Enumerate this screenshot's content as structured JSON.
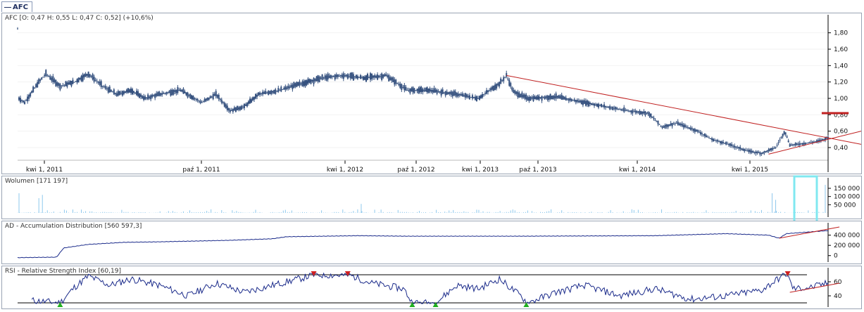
{
  "tab": {
    "label": "AFC"
  },
  "colors": {
    "candle": "#34507e",
    "trend": "#c02020",
    "line": "#1a2a8a",
    "volume": "#8ec8ec",
    "highlight": "#80e8f0",
    "marker_up": "#20b020",
    "marker_down": "#d02020"
  },
  "chart_data": [
    {
      "type": "candlestick",
      "title": "AFC [O: 0,47  H: 0,55  L: 0,47  C: 0,52] (+10,6%)",
      "x_tick_labels": [
        "kwi 1, 2011",
        "paź 1, 2011",
        "kwi 1, 2012",
        "paź 1, 2012",
        "kwi 1, 2013",
        "paź 1, 2013",
        "kwi 1, 2014",
        "kwi 1, 2015"
      ],
      "y_tick_labels": [
        "1,80",
        "1,60",
        "1,40",
        "1,20",
        "1,00",
        "0,80",
        "0,60",
        "0,40"
      ],
      "ylim": [
        0.28,
        1.9
      ],
      "price_path": [
        [
          0,
          1.85
        ],
        [
          2,
          1.0
        ],
        [
          10,
          0.95
        ],
        [
          30,
          1.2
        ],
        [
          40,
          1.3
        ],
        [
          60,
          1.15
        ],
        [
          80,
          1.2
        ],
        [
          100,
          1.3
        ],
        [
          120,
          1.15
        ],
        [
          140,
          1.05
        ],
        [
          160,
          1.1
        ],
        [
          180,
          1.0
        ],
        [
          200,
          1.05
        ],
        [
          230,
          1.1
        ],
        [
          260,
          0.95
        ],
        [
          280,
          1.05
        ],
        [
          300,
          0.85
        ],
        [
          320,
          0.9
        ],
        [
          340,
          1.05
        ],
        [
          370,
          1.1
        ],
        [
          400,
          1.18
        ],
        [
          430,
          1.25
        ],
        [
          460,
          1.28
        ],
        [
          490,
          1.25
        ],
        [
          520,
          1.28
        ],
        [
          550,
          1.1
        ],
        [
          580,
          1.1
        ],
        [
          620,
          1.05
        ],
        [
          650,
          1.0
        ],
        [
          680,
          1.18
        ],
        [
          690,
          1.28
        ],
        [
          700,
          1.08
        ],
        [
          720,
          1.0
        ],
        [
          760,
          1.02
        ],
        [
          800,
          0.95
        ],
        [
          830,
          0.9
        ],
        [
          860,
          0.85
        ],
        [
          890,
          0.82
        ],
        [
          910,
          0.65
        ],
        [
          930,
          0.7
        ],
        [
          960,
          0.6
        ],
        [
          980,
          0.5
        ],
        [
          1000,
          0.45
        ],
        [
          1030,
          0.36
        ],
        [
          1050,
          0.33
        ],
        [
          1070,
          0.4
        ],
        [
          1083,
          0.6
        ],
        [
          1090,
          0.43
        ],
        [
          1110,
          0.45
        ],
        [
          1130,
          0.48
        ],
        [
          1144,
          0.52
        ]
      ],
      "series": [
        {
          "name": "resistance",
          "points": [
            [
              690,
              1.28
            ],
            [
              1223,
              0.44
            ]
          ]
        },
        {
          "name": "support",
          "points": [
            [
              1060,
              0.32
            ],
            [
              1223,
              0.6
            ]
          ]
        },
        {
          "name": "level",
          "points": [
            [
              1135,
              0.82
            ],
            [
              1173,
              0.82
            ]
          ]
        }
      ]
    },
    {
      "type": "bar",
      "title": "Wolumen [171 197]",
      "y_tick_labels": [
        "150 000",
        "100 000",
        "50 000"
      ],
      "ylim": [
        0,
        180000
      ],
      "spikes": [
        [
          2,
          120000
        ],
        [
          30,
          90000
        ],
        [
          35,
          110000
        ],
        [
          485,
          55000
        ],
        [
          1065,
          120000
        ],
        [
          1070,
          80000
        ],
        [
          1140,
          171197
        ]
      ]
    },
    {
      "type": "line",
      "title": "AD - Accumulation Distribution [560 597,3]",
      "y_tick_labels": [
        "400 000",
        "200 000",
        "0"
      ],
      "ylim": [
        -100000,
        560000
      ],
      "points": [
        [
          0,
          -40000
        ],
        [
          55,
          -30000
        ],
        [
          65,
          150000
        ],
        [
          100,
          220000
        ],
        [
          150,
          260000
        ],
        [
          200,
          270000
        ],
        [
          300,
          300000
        ],
        [
          360,
          330000
        ],
        [
          380,
          370000
        ],
        [
          480,
          390000
        ],
        [
          550,
          380000
        ],
        [
          700,
          380000
        ],
        [
          900,
          390000
        ],
        [
          1000,
          430000
        ],
        [
          1060,
          400000
        ],
        [
          1075,
          340000
        ],
        [
          1085,
          430000
        ],
        [
          1144,
          490000
        ]
      ],
      "trend": [
        [
          1075,
          340000
        ],
        [
          1160,
          560000
        ]
      ]
    },
    {
      "type": "line",
      "title": "RSI - Relative Strength Index [60,19]",
      "y_tick_labels": [
        "60",
        "40"
      ],
      "ylim": [
        28,
        78
      ],
      "bands": [
        70,
        30
      ],
      "points": [
        [
          25,
          33
        ],
        [
          60,
          30
        ],
        [
          80,
          52
        ],
        [
          100,
          68
        ],
        [
          130,
          55
        ],
        [
          160,
          64
        ],
        [
          200,
          55
        ],
        [
          240,
          40
        ],
        [
          280,
          58
        ],
        [
          320,
          45
        ],
        [
          360,
          55
        ],
        [
          420,
          70
        ],
        [
          470,
          69
        ],
        [
          500,
          58
        ],
        [
          545,
          50
        ],
        [
          557,
          30
        ],
        [
          590,
          30
        ],
        [
          620,
          55
        ],
        [
          650,
          50
        ],
        [
          680,
          64
        ],
        [
          710,
          40
        ],
        [
          720,
          30
        ],
        [
          760,
          45
        ],
        [
          800,
          55
        ],
        [
          850,
          40
        ],
        [
          900,
          50
        ],
        [
          950,
          35
        ],
        [
          1000,
          40
        ],
        [
          1050,
          48
        ],
        [
          1085,
          72
        ],
        [
          1095,
          50
        ],
        [
          1120,
          52
        ],
        [
          1144,
          58
        ]
      ],
      "trend": [
        [
          1090,
          45
        ],
        [
          1160,
          58
        ]
      ],
      "markers_up": [
        60,
        557,
        590,
        718
      ],
      "markers_down": [
        418,
        466,
        1087
      ]
    }
  ]
}
